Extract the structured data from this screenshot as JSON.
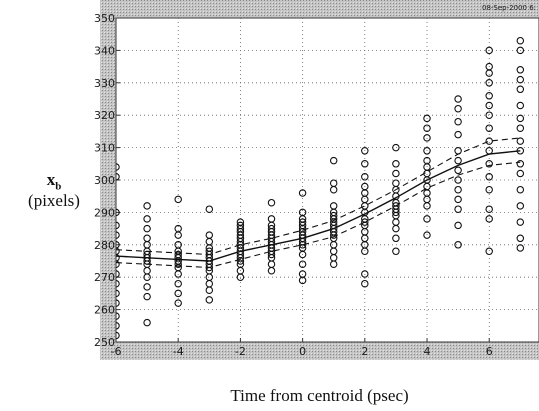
{
  "chart_data": {
    "type": "scatter",
    "title": "",
    "datestamp": "08-Sep-2000 6:",
    "xlabel": "Time from centroid (psec)",
    "ylabel_var": "x",
    "ylabel_sub": "b",
    "ylabel_unit": "(pixels)",
    "xlim": [
      -6,
      7.6
    ],
    "ylim": [
      250,
      350
    ],
    "xticks": [
      -6,
      -4,
      -2,
      0,
      2,
      4,
      6
    ],
    "yticks": [
      250,
      260,
      270,
      280,
      290,
      300,
      310,
      320,
      330,
      340,
      350
    ],
    "grid": true,
    "series": [
      {
        "points": [
          [
            -6,
            252
          ],
          [
            -6,
            255
          ],
          [
            -6,
            258
          ],
          [
            -6,
            262
          ],
          [
            -6,
            265
          ],
          [
            -6,
            268
          ],
          [
            -6,
            271
          ],
          [
            -6,
            274
          ],
          [
            -6,
            276
          ],
          [
            -6,
            278
          ],
          [
            -6,
            280
          ],
          [
            -6,
            283
          ],
          [
            -6,
            286
          ],
          [
            -6,
            290
          ],
          [
            -6,
            301
          ],
          [
            -6,
            304
          ],
          [
            -5,
            256
          ],
          [
            -5,
            264
          ],
          [
            -5,
            267
          ],
          [
            -5,
            270
          ],
          [
            -5,
            272
          ],
          [
            -5,
            274
          ],
          [
            -5,
            275
          ],
          [
            -5,
            276
          ],
          [
            -5,
            277
          ],
          [
            -5,
            278
          ],
          [
            -5,
            280
          ],
          [
            -5,
            282
          ],
          [
            -5,
            285
          ],
          [
            -5,
            288
          ],
          [
            -5,
            292
          ],
          [
            -4,
            262
          ],
          [
            -4,
            265
          ],
          [
            -4,
            268
          ],
          [
            -4,
            271
          ],
          [
            -4,
            273
          ],
          [
            -4,
            274
          ],
          [
            -4,
            275
          ],
          [
            -4,
            276
          ],
          [
            -4,
            277
          ],
          [
            -4,
            278
          ],
          [
            -4,
            280
          ],
          [
            -4,
            283
          ],
          [
            -4,
            285
          ],
          [
            -4,
            294
          ],
          [
            -3,
            263
          ],
          [
            -3,
            266
          ],
          [
            -3,
            268
          ],
          [
            -3,
            270
          ],
          [
            -3,
            272
          ],
          [
            -3,
            273
          ],
          [
            -3,
            274
          ],
          [
            -3,
            275
          ],
          [
            -3,
            276
          ],
          [
            -3,
            277
          ],
          [
            -3,
            278
          ],
          [
            -3,
            279
          ],
          [
            -3,
            281
          ],
          [
            -3,
            283
          ],
          [
            -3,
            291
          ],
          [
            -2,
            270
          ],
          [
            -2,
            272
          ],
          [
            -2,
            274
          ],
          [
            -2,
            275
          ],
          [
            -2,
            276
          ],
          [
            -2,
            277
          ],
          [
            -2,
            278
          ],
          [
            -2,
            279
          ],
          [
            -2,
            280
          ],
          [
            -2,
            281
          ],
          [
            -2,
            282
          ],
          [
            -2,
            283
          ],
          [
            -2,
            284
          ],
          [
            -2,
            285
          ],
          [
            -2,
            286
          ],
          [
            -2,
            287
          ],
          [
            -1,
            272
          ],
          [
            -1,
            274
          ],
          [
            -1,
            276
          ],
          [
            -1,
            277
          ],
          [
            -1,
            278
          ],
          [
            -1,
            279
          ],
          [
            -1,
            280
          ],
          [
            -1,
            281
          ],
          [
            -1,
            282
          ],
          [
            -1,
            283
          ],
          [
            -1,
            284
          ],
          [
            -1,
            285
          ],
          [
            -1,
            286
          ],
          [
            -1,
            288
          ],
          [
            -1,
            293
          ],
          [
            0,
            269
          ],
          [
            0,
            271
          ],
          [
            0,
            274
          ],
          [
            0,
            277
          ],
          [
            0,
            279
          ],
          [
            0,
            280
          ],
          [
            0,
            281
          ],
          [
            0,
            282
          ],
          [
            0,
            283
          ],
          [
            0,
            284
          ],
          [
            0,
            285
          ],
          [
            0,
            286
          ],
          [
            0,
            287
          ],
          [
            0,
            288
          ],
          [
            0,
            290
          ],
          [
            0,
            296
          ],
          [
            1,
            274
          ],
          [
            1,
            276
          ],
          [
            1,
            278
          ],
          [
            1,
            280
          ],
          [
            1,
            282
          ],
          [
            1,
            283
          ],
          [
            1,
            284
          ],
          [
            1,
            285
          ],
          [
            1,
            286
          ],
          [
            1,
            287
          ],
          [
            1,
            288
          ],
          [
            1,
            289
          ],
          [
            1,
            290
          ],
          [
            1,
            292
          ],
          [
            1,
            297
          ],
          [
            1,
            299
          ],
          [
            1,
            306
          ],
          [
            2,
            268
          ],
          [
            2,
            271
          ],
          [
            2,
            278
          ],
          [
            2,
            280
          ],
          [
            2,
            282
          ],
          [
            2,
            284
          ],
          [
            2,
            286
          ],
          [
            2,
            287
          ],
          [
            2,
            288
          ],
          [
            2,
            290
          ],
          [
            2,
            292
          ],
          [
            2,
            294
          ],
          [
            2,
            296
          ],
          [
            2,
            298
          ],
          [
            2,
            301
          ],
          [
            2,
            305
          ],
          [
            2,
            309
          ],
          [
            3,
            278
          ],
          [
            3,
            282
          ],
          [
            3,
            285
          ],
          [
            3,
            287
          ],
          [
            3,
            289
          ],
          [
            3,
            290
          ],
          [
            3,
            291
          ],
          [
            3,
            292
          ],
          [
            3,
            293
          ],
          [
            3,
            295
          ],
          [
            3,
            297
          ],
          [
            3,
            299
          ],
          [
            3,
            302
          ],
          [
            3,
            305
          ],
          [
            3,
            310
          ],
          [
            4,
            283
          ],
          [
            4,
            288
          ],
          [
            4,
            292
          ],
          [
            4,
            294
          ],
          [
            4,
            296
          ],
          [
            4,
            298
          ],
          [
            4,
            300
          ],
          [
            4,
            302
          ],
          [
            4,
            304
          ],
          [
            4,
            306
          ],
          [
            4,
            309
          ],
          [
            4,
            313
          ],
          [
            4,
            316
          ],
          [
            4,
            319
          ],
          [
            5,
            280
          ],
          [
            5,
            286
          ],
          [
            5,
            291
          ],
          [
            5,
            294
          ],
          [
            5,
            297
          ],
          [
            5,
            300
          ],
          [
            5,
            303
          ],
          [
            5,
            306
          ],
          [
            5,
            309
          ],
          [
            5,
            314
          ],
          [
            5,
            318
          ],
          [
            5,
            322
          ],
          [
            5,
            325
          ],
          [
            6,
            278
          ],
          [
            6,
            288
          ],
          [
            6,
            291
          ],
          [
            6,
            297
          ],
          [
            6,
            301
          ],
          [
            6,
            305
          ],
          [
            6,
            309
          ],
          [
            6,
            312
          ],
          [
            6,
            316
          ],
          [
            6,
            320
          ],
          [
            6,
            323
          ],
          [
            6,
            326
          ],
          [
            6,
            330
          ],
          [
            6,
            333
          ],
          [
            6,
            335
          ],
          [
            6,
            340
          ],
          [
            7,
            279
          ],
          [
            7,
            282
          ],
          [
            7,
            287
          ],
          [
            7,
            292
          ],
          [
            7,
            297
          ],
          [
            7,
            302
          ],
          [
            7,
            305
          ],
          [
            7,
            309
          ],
          [
            7,
            312
          ],
          [
            7,
            316
          ],
          [
            7,
            319
          ],
          [
            7,
            323
          ],
          [
            7,
            328
          ],
          [
            7,
            331
          ],
          [
            7,
            334
          ],
          [
            7,
            340
          ],
          [
            7,
            343
          ]
        ]
      },
      {
        "style": "solid",
        "x": [
          -6,
          -5,
          -4,
          -3,
          -2,
          -1,
          0,
          1,
          2,
          3,
          4,
          5,
          6,
          7
        ],
        "y": [
          276.5,
          276,
          275.5,
          275,
          278,
          280,
          282,
          285,
          289.5,
          294.5,
          300,
          304.5,
          308,
          309
        ]
      },
      {
        "style": "dashed",
        "x": [
          -6,
          -5,
          -4,
          -3,
          -2,
          -1,
          0,
          1,
          2,
          3,
          4,
          5,
          6,
          7
        ],
        "y": [
          278.5,
          278,
          277.5,
          277,
          280,
          282,
          284.5,
          287.5,
          292,
          297,
          302.5,
          308,
          312,
          313
        ]
      },
      {
        "style": "dashed",
        "x": [
          -6,
          -5,
          -4,
          -3,
          -2,
          -1,
          0,
          1,
          2,
          3,
          4,
          5,
          6,
          7
        ],
        "y": [
          274.5,
          274,
          273.5,
          273,
          275.5,
          278,
          280,
          282.5,
          287,
          292,
          297.5,
          301.5,
          304.5,
          305.5
        ]
      }
    ]
  }
}
